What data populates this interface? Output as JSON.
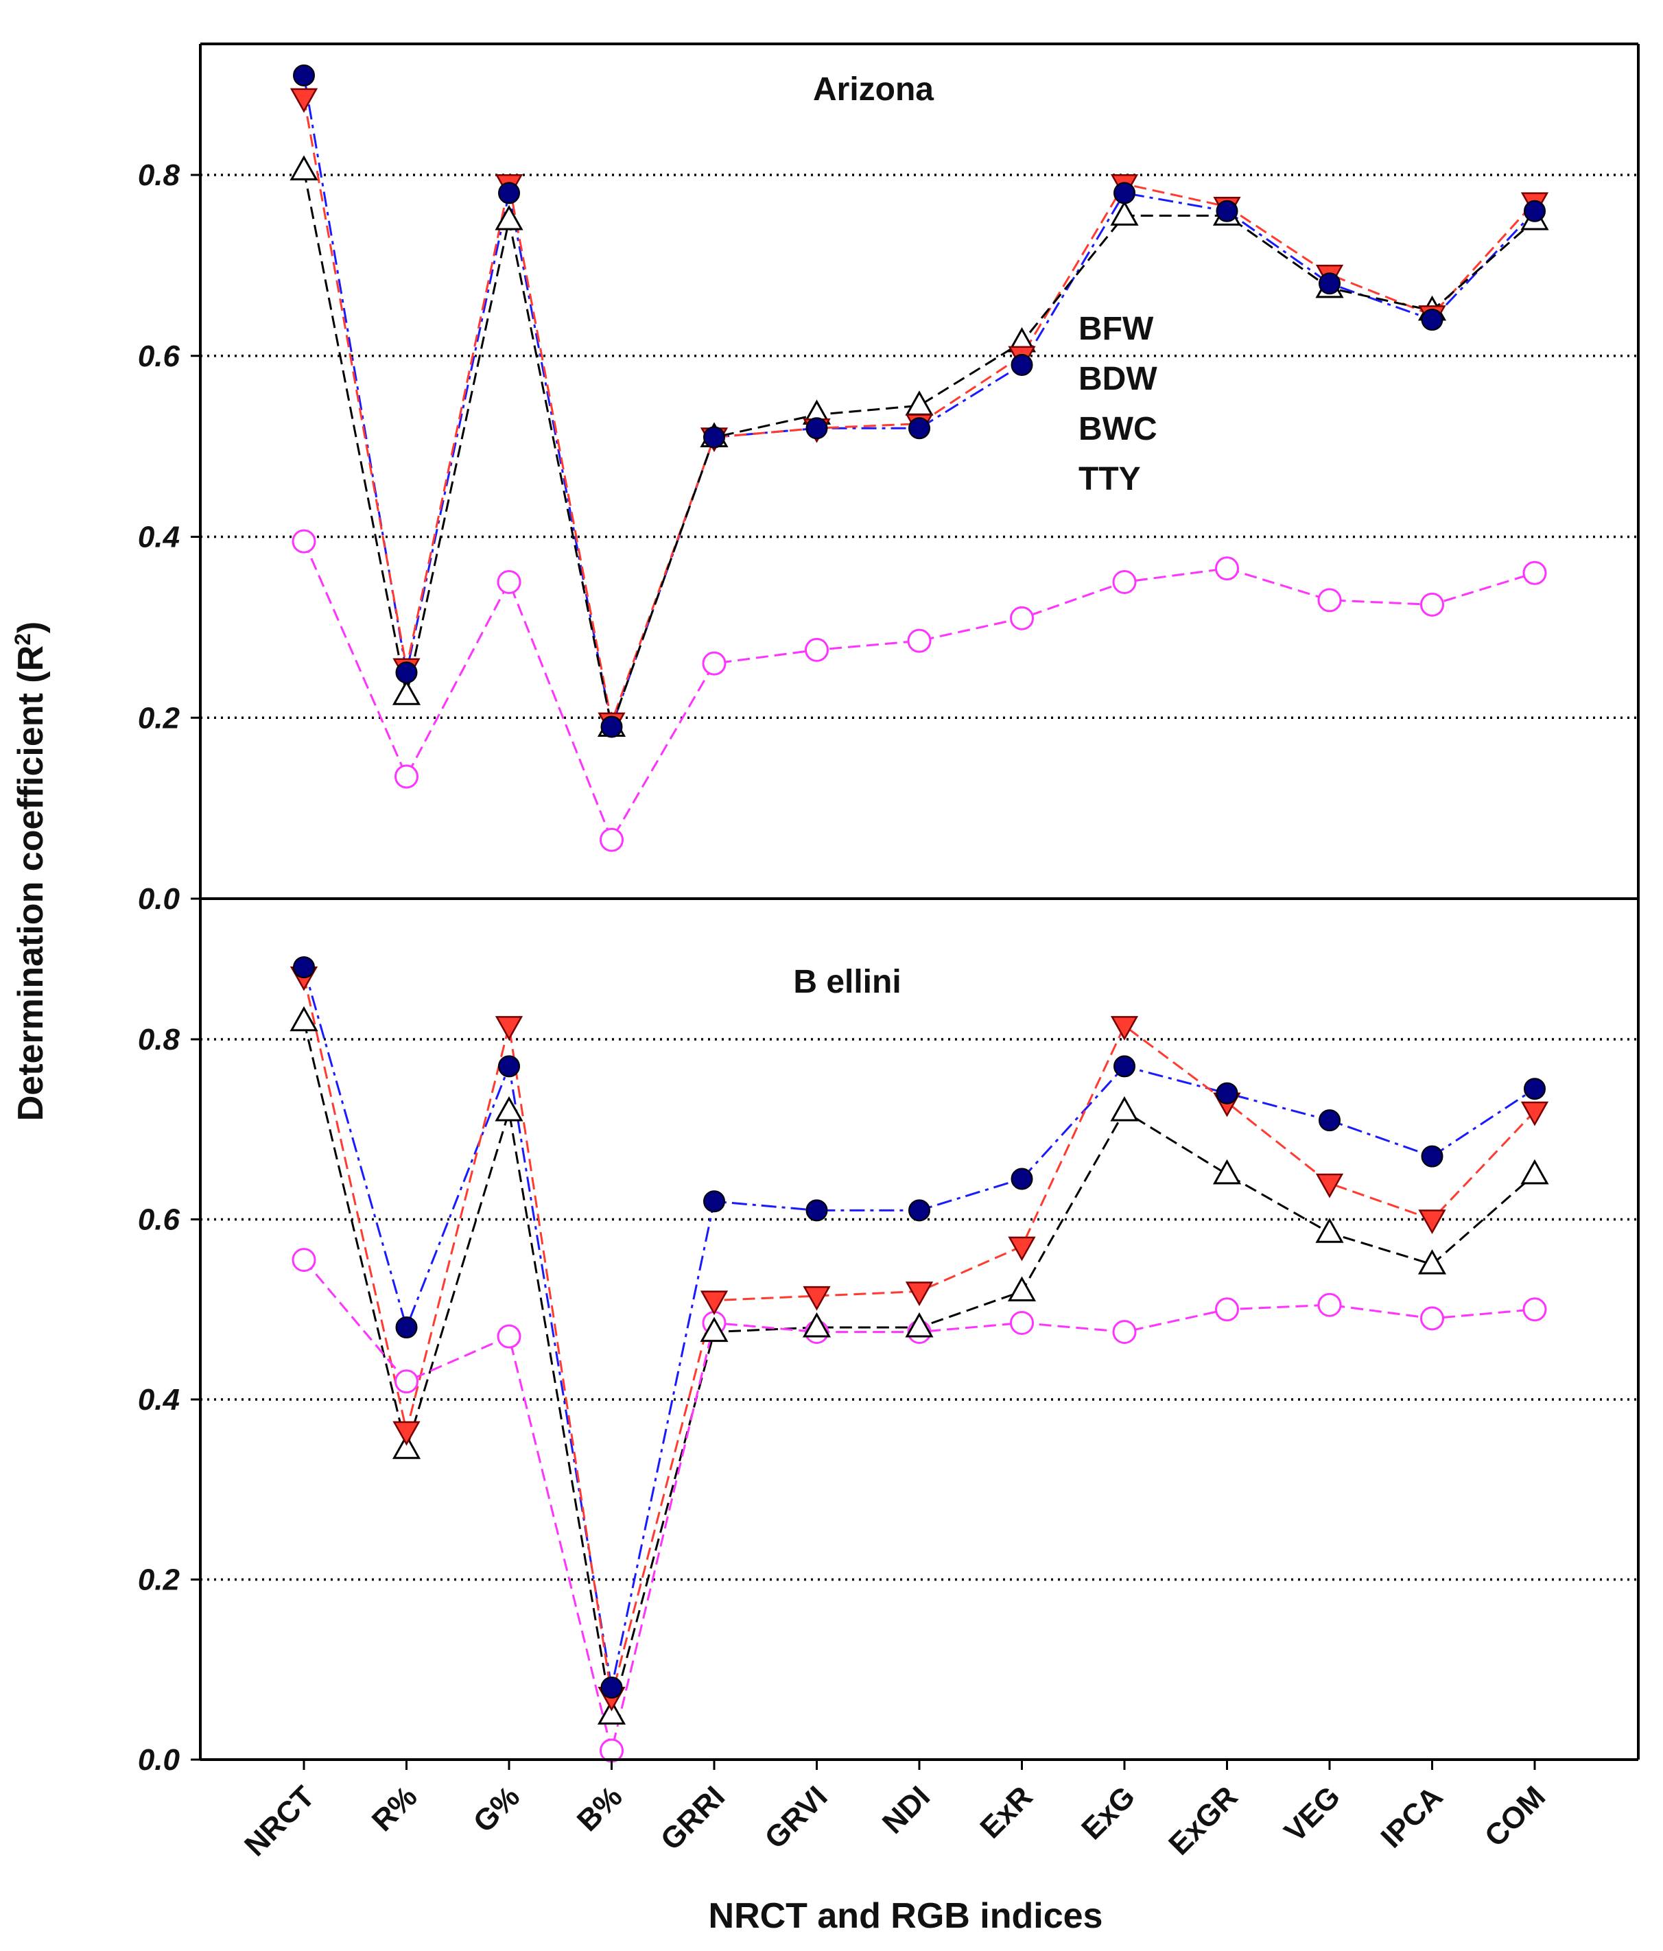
{
  "chart_data": [
    {
      "type": "line",
      "title": "Arizona",
      "xlabel": "NRCT and RGB indices",
      "ylabel": "Determination coefficient (R²)",
      "ylim": [
        0,
        0.95
      ],
      "yticks": [
        "0.0",
        "0.2",
        "0.4",
        "0.6",
        "0.8"
      ],
      "grid": "horizontal dotted",
      "categories": [
        "NRCT",
        "R%",
        "G%",
        "B%",
        "GRRI",
        "GRVI",
        "NDI",
        "ExR",
        "ExG",
        "ExGR",
        "VEG",
        "IPCA",
        "COM"
      ],
      "legend": [
        "BFW",
        "BDW",
        "BWC",
        "TTY"
      ],
      "series": [
        {
          "name": "BFW",
          "color": "#1a1aff",
          "marker": "circle-filled",
          "values": [
            0.91,
            0.25,
            0.78,
            0.19,
            0.51,
            0.52,
            0.52,
            0.59,
            0.78,
            0.76,
            0.68,
            0.64,
            0.76
          ]
        },
        {
          "name": "BDW",
          "color": "#ff3b30",
          "marker": "triangle-down-filled",
          "values": [
            0.885,
            0.255,
            0.79,
            0.195,
            0.51,
            0.52,
            0.525,
            0.6,
            0.79,
            0.765,
            0.69,
            0.645,
            0.77
          ]
        },
        {
          "name": "BWC",
          "color": "#000000",
          "marker": "triangle-up-open",
          "values": [
            0.805,
            0.225,
            0.75,
            0.19,
            0.51,
            0.535,
            0.545,
            0.615,
            0.755,
            0.755,
            0.675,
            0.65,
            0.75
          ]
        },
        {
          "name": "TTY",
          "color": "#ff33ff",
          "marker": "circle-open",
          "values": [
            0.395,
            0.135,
            0.35,
            0.065,
            0.26,
            0.275,
            0.285,
            0.31,
            0.35,
            0.365,
            0.33,
            0.325,
            0.36
          ]
        }
      ]
    },
    {
      "type": "line",
      "title": "B ellini",
      "xlabel": "NRCT and RGB indices",
      "ylabel": "Determination coefficient (R²)",
      "ylim": [
        0,
        0.95
      ],
      "yticks": [
        "0.0",
        "0.2",
        "0.4",
        "0.6",
        "0.8"
      ],
      "grid": "horizontal dotted",
      "categories": [
        "NRCT",
        "R%",
        "G%",
        "B%",
        "GRRI",
        "GRVI",
        "NDI",
        "ExR",
        "ExG",
        "ExGR",
        "VEG",
        "IPCA",
        "COM"
      ],
      "series": [
        {
          "name": "BFW",
          "color": "#1a1aff",
          "marker": "circle-filled",
          "values": [
            0.88,
            0.48,
            0.77,
            0.08,
            0.62,
            0.61,
            0.61,
            0.645,
            0.77,
            0.74,
            0.71,
            0.67,
            0.745
          ]
        },
        {
          "name": "BDW",
          "color": "#ff3b30",
          "marker": "triangle-down-filled",
          "values": [
            0.87,
            0.365,
            0.815,
            0.07,
            0.51,
            0.515,
            0.52,
            0.57,
            0.815,
            0.73,
            0.64,
            0.6,
            0.72
          ]
        },
        {
          "name": "BWC",
          "color": "#000000",
          "marker": "triangle-up-open",
          "values": [
            0.82,
            0.345,
            0.72,
            0.05,
            0.475,
            0.48,
            0.48,
            0.52,
            0.72,
            0.65,
            0.585,
            0.55,
            0.65
          ]
        },
        {
          "name": "TTY",
          "color": "#ff33ff",
          "marker": "circle-open",
          "values": [
            0.555,
            0.42,
            0.47,
            0.01,
            0.485,
            0.475,
            0.475,
            0.485,
            0.475,
            0.5,
            0.505,
            0.49,
            0.5
          ]
        }
      ]
    }
  ]
}
